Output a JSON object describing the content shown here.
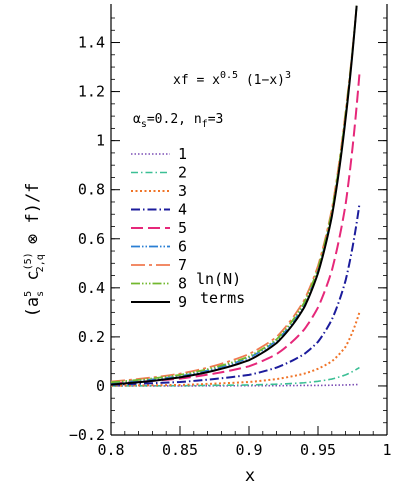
{
  "chart_data": {
    "type": "line",
    "xlabel": "x",
    "ylabel": {
      "open": "(",
      "a": "a",
      "a_sup": "5",
      "a_sub": "s",
      "c": " c",
      "c_sup": "(5)",
      "c_sub": "2,q",
      "otimes": " ⊗ ",
      "rest": "f)/f"
    },
    "xlim": [
      0.8,
      1.0
    ],
    "ylim": [
      -0.2,
      1.55
    ],
    "xticks": [
      "0.8",
      "0.85",
      "0.9",
      "0.95",
      "1"
    ],
    "yticks": [
      "−0.2",
      "0",
      "0.2",
      "0.4",
      "0.6",
      "0.8",
      "1",
      "1.2",
      "1.4"
    ],
    "annotation1": {
      "prefix": "xf = x",
      "exp1": "0.5",
      "middle": " (1−x)",
      "exp2": "3"
    },
    "annotation2": {
      "alpha": "α",
      "alpha_sub": "s",
      "alpha_val": "=0.2, n",
      "nf_sub": "f",
      "nf_val": "=3"
    },
    "legend_extra": [
      "ln(N)",
      "terms"
    ],
    "legend_position": "left-center",
    "series": [
      {
        "name": "1",
        "color": "#7b4fb5",
        "dash": "1.5,2",
        "width": 1.6,
        "xend": 0.98,
        "x": [
          0.8,
          0.85,
          0.9,
          0.92,
          0.94,
          0.95,
          0.96,
          0.97,
          0.98
        ],
        "y": [
          0.0,
          0.0,
          0.001,
          0.001,
          0.002,
          0.002,
          0.003,
          0.004,
          0.006
        ]
      },
      {
        "name": "2",
        "color": "#3bbf95",
        "dash": "7,3,1.5,3",
        "width": 1.6,
        "xend": 0.98,
        "x": [
          0.8,
          0.85,
          0.9,
          0.92,
          0.94,
          0.95,
          0.96,
          0.97,
          0.98
        ],
        "y": [
          0.0,
          0.001,
          0.004,
          0.007,
          0.013,
          0.019,
          0.028,
          0.045,
          0.075
        ]
      },
      {
        "name": "3",
        "color": "#f07428",
        "dash": "2,2.5",
        "width": 2.0,
        "xend": 0.98,
        "x": [
          0.8,
          0.85,
          0.9,
          0.92,
          0.94,
          0.95,
          0.96,
          0.97,
          0.98
        ],
        "y": [
          0.001,
          0.004,
          0.016,
          0.028,
          0.05,
          0.07,
          0.1,
          0.16,
          0.3
        ]
      },
      {
        "name": "4",
        "color": "#1c1c9c",
        "dash": "9,3,1.5,3",
        "width": 2.0,
        "xend": 0.98,
        "x": [
          0.8,
          0.85,
          0.9,
          0.92,
          0.94,
          0.95,
          0.96,
          0.97,
          0.98
        ],
        "y": [
          0.005,
          0.016,
          0.045,
          0.075,
          0.13,
          0.18,
          0.27,
          0.43,
          0.74
        ]
      },
      {
        "name": "5",
        "color": "#e6287a",
        "dash": "12,5",
        "width": 2.0,
        "xend": 0.98,
        "x": [
          0.8,
          0.85,
          0.9,
          0.92,
          0.94,
          0.95,
          0.96,
          0.97,
          0.98
        ],
        "y": [
          0.01,
          0.03,
          0.08,
          0.13,
          0.23,
          0.32,
          0.47,
          0.74,
          1.27
        ]
      },
      {
        "name": "6",
        "color": "#2a7fd4",
        "dash": "9,2,1.5,2,1.5,2",
        "width": 1.8,
        "xend": 0.978,
        "x": [
          0.8,
          0.85,
          0.9,
          0.92,
          0.94,
          0.95,
          0.96,
          0.97,
          0.978
        ],
        "y": [
          0.012,
          0.04,
          0.115,
          0.185,
          0.33,
          0.47,
          0.7,
          1.1,
          1.55
        ]
      },
      {
        "name": "7",
        "color": "#f07a50",
        "dash": "14,4,3,4",
        "width": 1.8,
        "xend": 0.978,
        "x": [
          0.8,
          0.85,
          0.9,
          0.92,
          0.94,
          0.95,
          0.96,
          0.97,
          0.978
        ],
        "y": [
          0.018,
          0.05,
          0.13,
          0.2,
          0.35,
          0.49,
          0.72,
          1.12,
          1.55
        ]
      },
      {
        "name": "8",
        "color": "#72b82e",
        "dash": "9,2,1.5,2,1.5,2,1.5,2",
        "width": 1.8,
        "xend": 0.978,
        "x": [
          0.8,
          0.85,
          0.9,
          0.92,
          0.94,
          0.95,
          0.96,
          0.97,
          0.978
        ],
        "y": [
          0.015,
          0.045,
          0.12,
          0.19,
          0.34,
          0.48,
          0.71,
          1.11,
          1.55
        ]
      },
      {
        "name": "9",
        "color": "#000000",
        "dash": "",
        "width": 2.0,
        "xend": 0.978,
        "x": [
          0.8,
          0.85,
          0.9,
          0.92,
          0.94,
          0.95,
          0.96,
          0.97,
          0.978
        ],
        "y": [
          0.006,
          0.035,
          0.105,
          0.175,
          0.32,
          0.46,
          0.69,
          1.09,
          1.55
        ]
      }
    ]
  }
}
